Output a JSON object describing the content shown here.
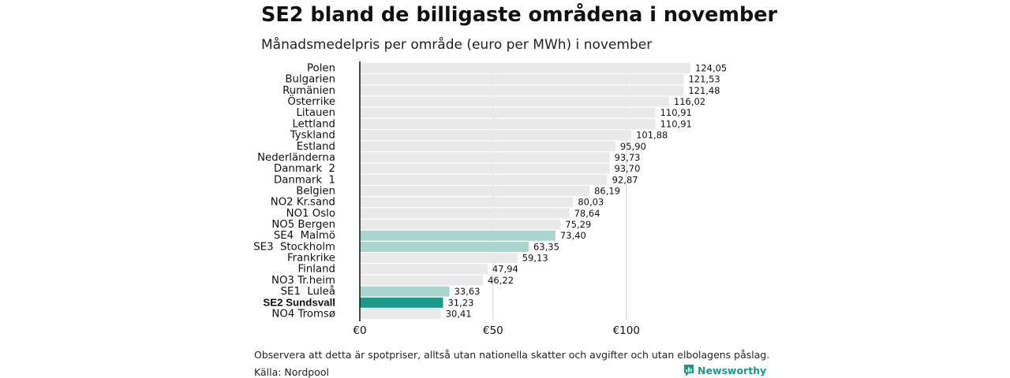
{
  "title": "SE2 bland de billigaste områdena i november",
  "subtitle": "Månadsmedelpris per område (euro per MWh) i november",
  "note": "Observera att detta är spotpriser, alltså utan nationella skatter och avgifter och utan elbolagens påslag.",
  "source": "Källa: Nordpool",
  "brand": "Newsworthy",
  "colors": {
    "default": "#e9e9e9",
    "swedish": "#a8d5cd",
    "highlight": "#1a9988",
    "axis": "#111111",
    "grid": "#d0d0d0",
    "brand": "#1a9988"
  },
  "chart_data": {
    "type": "bar",
    "orientation": "horizontal",
    "title": "SE2 bland de billigaste områdena i november",
    "subtitle": "Månadsmedelpris per område (euro per MWh) i november",
    "xlabel": "",
    "ylabel": "",
    "xlim": [
      0,
      124.05
    ],
    "xticks": [
      0,
      50,
      100
    ],
    "xtick_labels": [
      "€0",
      "€50",
      "€100"
    ],
    "grid": true,
    "categories": [
      "Polen",
      "Bulgarien",
      "Rumänien",
      "Österrike",
      "Litauen",
      "Lettland",
      "Tyskland",
      "Estland",
      "Nederländerna",
      "Danmark  2",
      "Danmark  1",
      "Belgien",
      "NO2 Kr.sand",
      "NO1 Oslo",
      "NO5 Bergen",
      "SE4  Malmö",
      "SE3  Stockholm",
      "Frankrike",
      "Finland",
      "NO3 Tr.heim",
      "SE1  Luleå",
      "SE2 Sundsvall",
      "NO4 Tromsø"
    ],
    "values": [
      124.05,
      121.53,
      121.48,
      116.02,
      110.91,
      110.91,
      101.88,
      95.9,
      93.73,
      93.7,
      92.87,
      86.19,
      80.03,
      78.64,
      75.29,
      73.4,
      63.35,
      59.13,
      47.94,
      46.22,
      33.63,
      31.23,
      30.41
    ],
    "value_labels": [
      "124,05",
      "121,53",
      "121,48",
      "116,02",
      "110,91",
      "110,91",
      "101,88",
      "95,90",
      "93,73",
      "93,70",
      "92,87",
      "86,19",
      "80,03",
      "78,64",
      "75,29",
      "73,40",
      "63,35",
      "59,13",
      "47,94",
      "46,22",
      "33,63",
      "31,23",
      "30,41"
    ],
    "bar_style": [
      "default",
      "default",
      "default",
      "default",
      "default",
      "default",
      "default",
      "default",
      "default",
      "default",
      "default",
      "default",
      "default",
      "default",
      "default",
      "swedish",
      "swedish",
      "default",
      "default",
      "default",
      "swedish",
      "highlight",
      "default"
    ],
    "bold_labels": [
      "SE2 Sundsvall"
    ]
  }
}
